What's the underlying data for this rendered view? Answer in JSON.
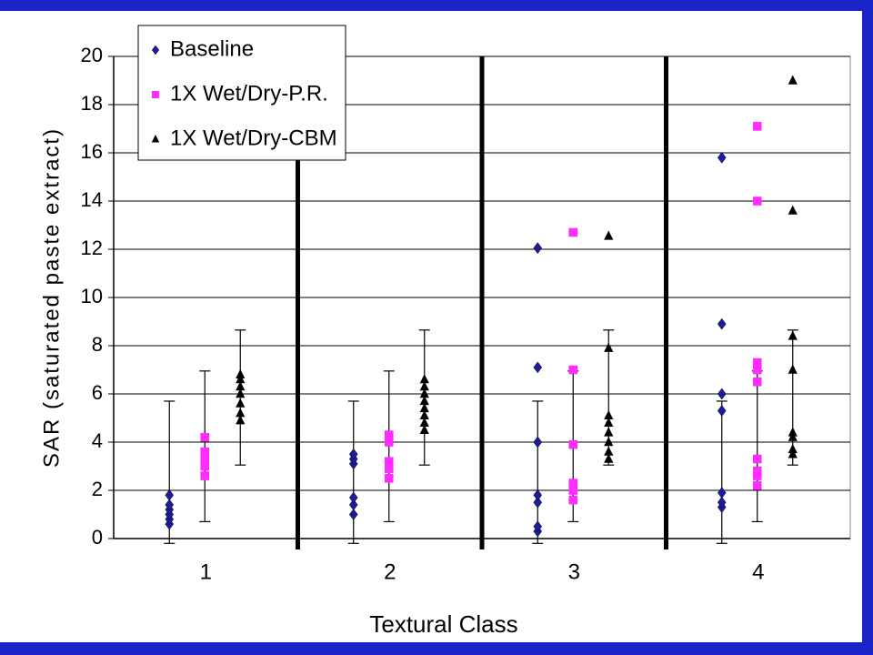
{
  "chart_data": {
    "type": "scatter",
    "xlabel": "Textural Class",
    "ylabel": "SAR (saturated paste extract)",
    "categories": [
      "1",
      "2",
      "3",
      "4"
    ],
    "ylim": [
      0,
      20
    ],
    "yticks": [
      0,
      2,
      4,
      6,
      8,
      10,
      12,
      14,
      16,
      18,
      20
    ],
    "series": [
      {
        "name": "Baseline",
        "color": "#1c1c9c",
        "marker": "diamond",
        "values": [
          [
            0.6,
            0.8,
            1.0,
            1.2,
            1.4,
            1.8
          ],
          [
            1.0,
            1.4,
            1.7,
            3.1,
            3.3,
            3.5
          ],
          [
            0.3,
            0.5,
            1.5,
            1.8,
            4.0,
            7.1,
            12.05
          ],
          [
            1.3,
            1.5,
            1.9,
            5.3,
            6.0,
            8.9,
            15.8
          ]
        ],
        "error_low": [
          -0.2,
          -0.2,
          -0.2,
          -0.2
        ],
        "error_high": [
          5.7,
          5.7,
          5.7,
          5.7
        ]
      },
      {
        "name": "1X Wet/Dry-P.R.",
        "color": "#ff2bff",
        "marker": "square",
        "values": [
          [
            2.6,
            3.0,
            3.3,
            3.6,
            4.2
          ],
          [
            2.5,
            2.9,
            3.2,
            4.0,
            4.3
          ],
          [
            1.6,
            2.0,
            2.3,
            3.9,
            7.0,
            12.7
          ],
          [
            2.2,
            2.6,
            2.8,
            3.3,
            6.5,
            7.0,
            7.3,
            14.0,
            17.1
          ]
        ],
        "error_low": [
          0.7,
          0.7,
          0.7,
          0.7
        ],
        "error_high": [
          6.95,
          6.95,
          6.95,
          6.95
        ]
      },
      {
        "name": "1X Wet/Dry-CBM",
        "color": "#000000",
        "marker": "triangle",
        "values": [
          [
            4.9,
            5.2,
            5.6,
            6.0,
            6.3,
            6.6,
            6.8
          ],
          [
            4.5,
            4.8,
            5.1,
            5.4,
            5.7,
            6.0,
            6.3,
            6.6
          ],
          [
            3.3,
            3.6,
            4.0,
            4.4,
            4.8,
            5.1,
            7.9,
            12.55
          ],
          [
            3.5,
            3.7,
            4.2,
            4.4,
            7.0,
            8.4,
            13.6,
            19.0
          ]
        ],
        "error_low": [
          3.05,
          3.05,
          3.05,
          3.05
        ],
        "error_high": [
          8.65,
          8.65,
          8.65,
          8.65
        ]
      }
    ]
  }
}
